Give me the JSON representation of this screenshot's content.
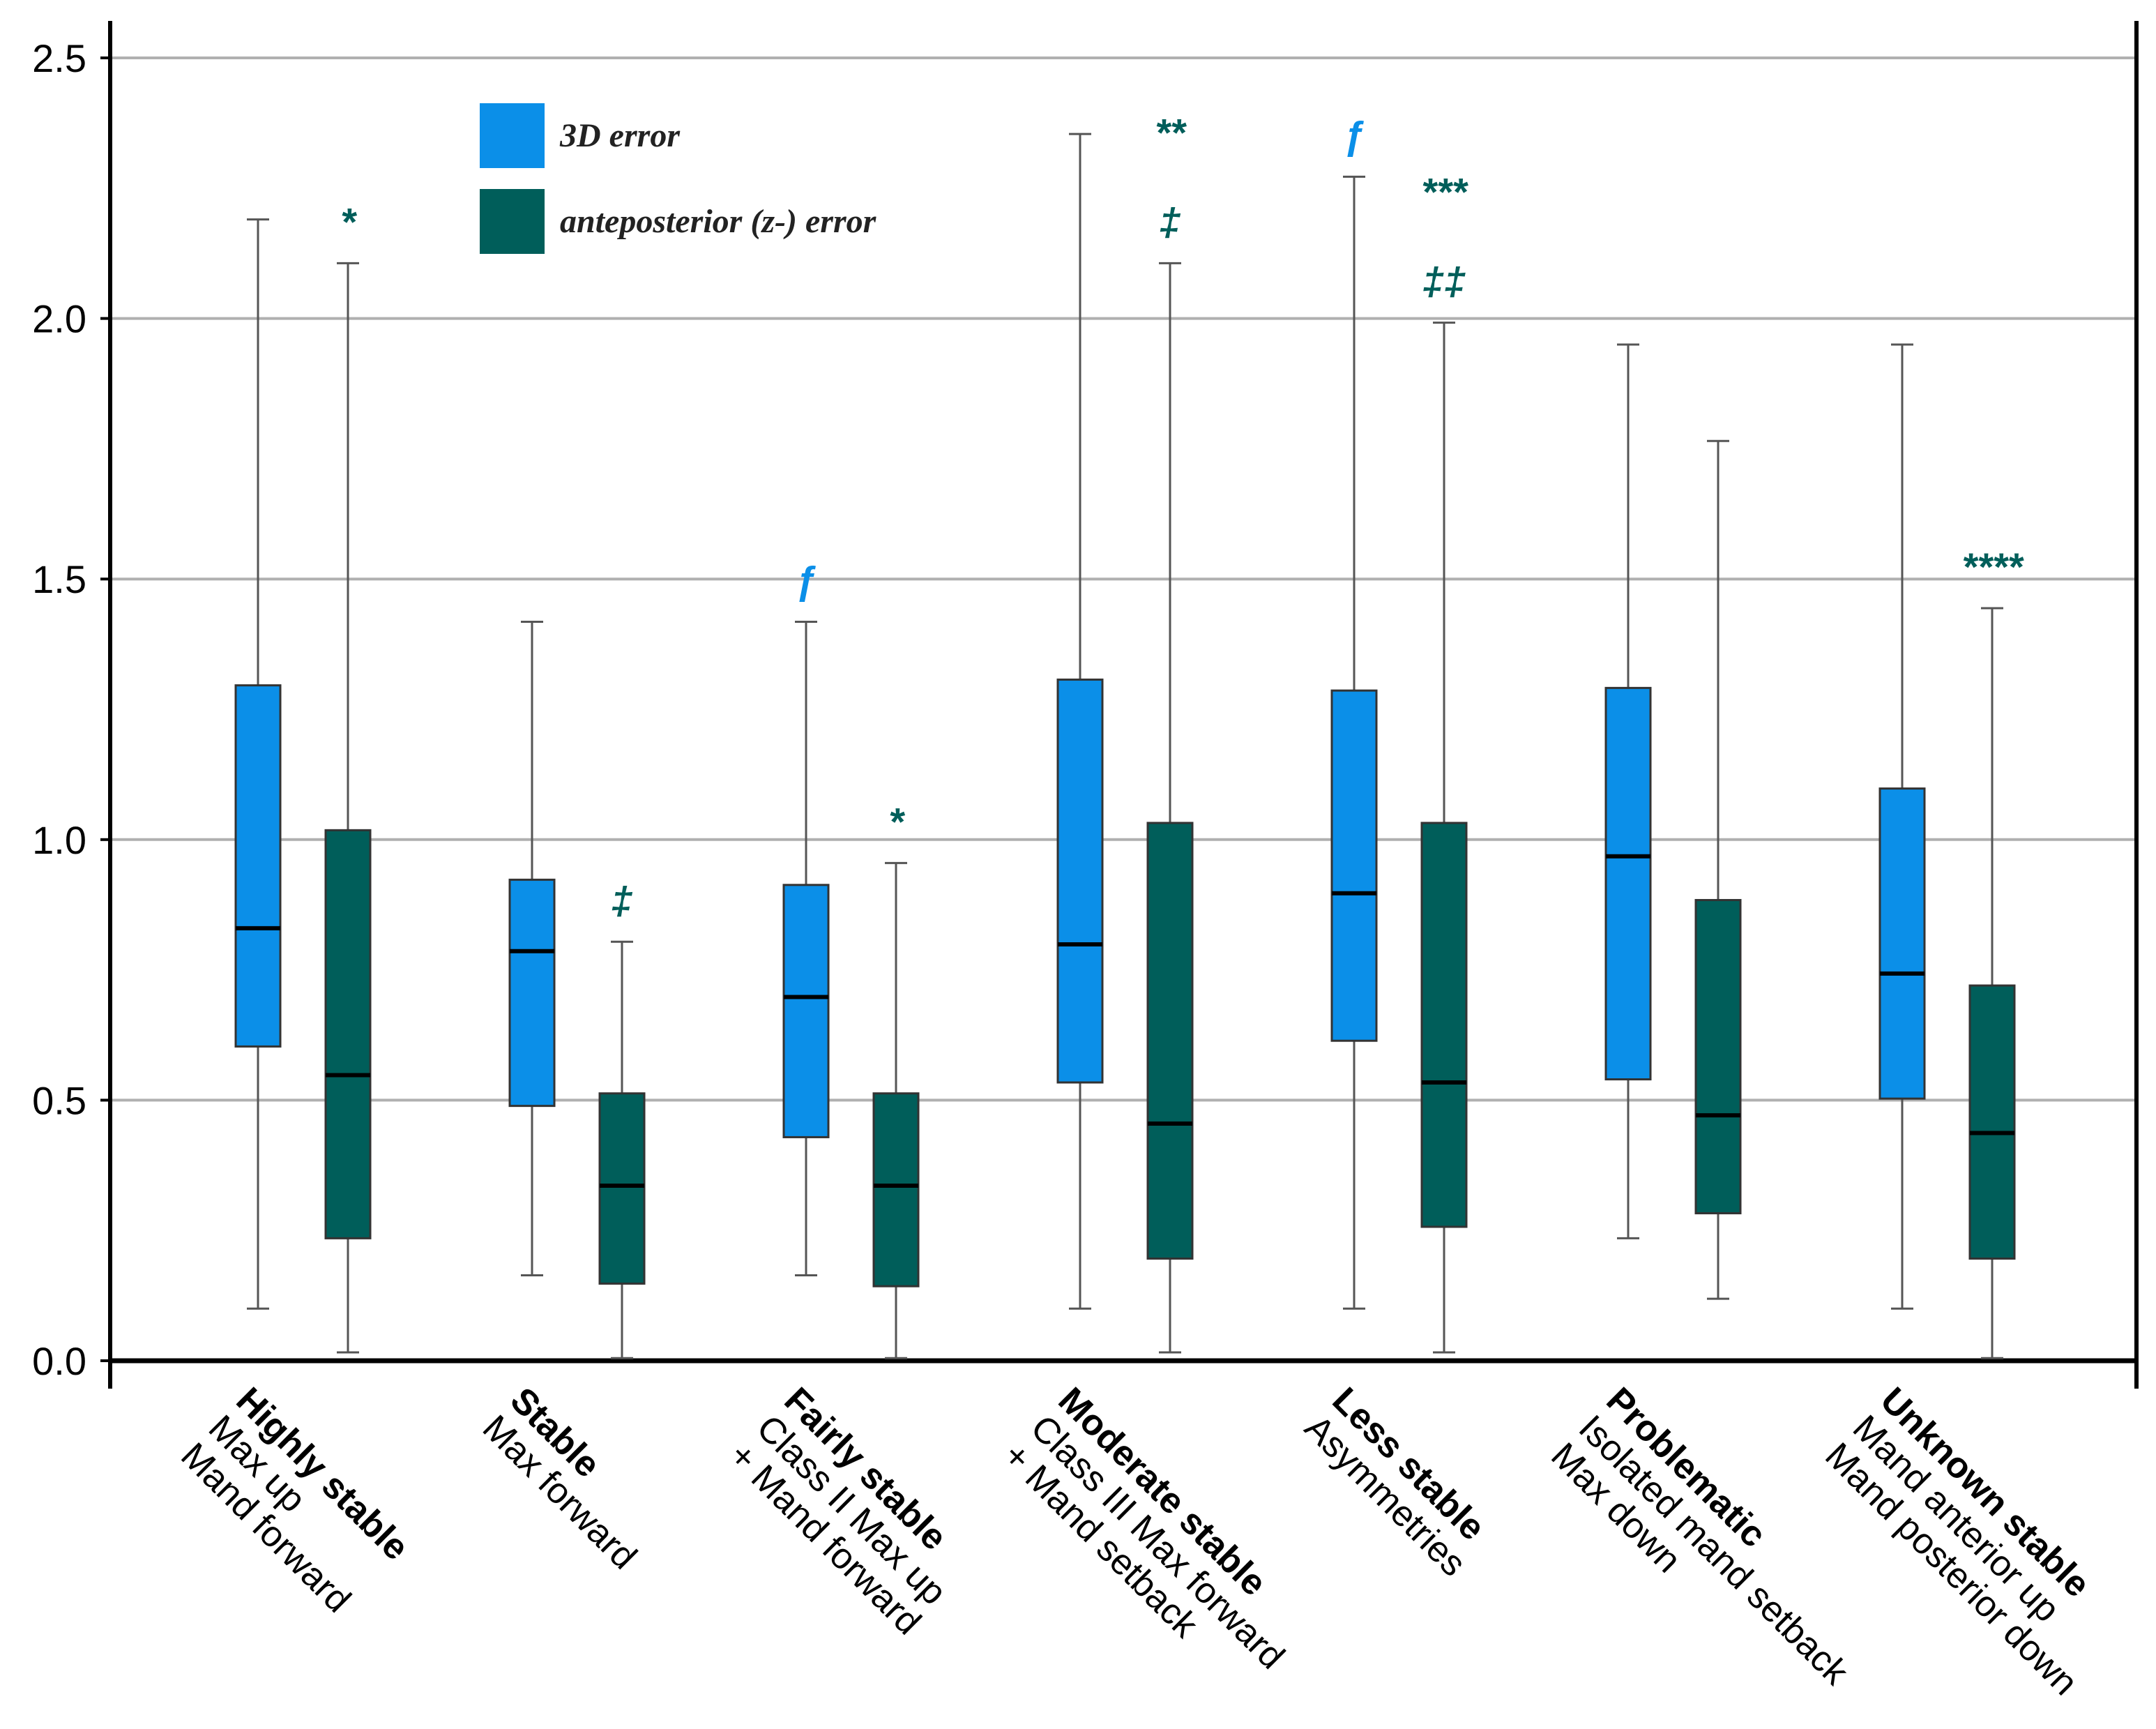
{
  "chart_data": {
    "type": "box",
    "categories": [
      [
        "Highly stable",
        "Max up",
        "Mand forward"
      ],
      [
        "Stable",
        "Max forward"
      ],
      [
        "Fairly stable",
        "Class II Max up",
        "+ Mand forward"
      ],
      [
        "Moderate stable",
        "Class III Max forward",
        "+ Mand setback"
      ],
      [
        "Less stable",
        "Asymmetries"
      ],
      [
        "Problematic",
        "Isolated mand setback",
        "Max down"
      ],
      [
        "Unknown stable",
        "Mand anterior up",
        "Mand posterior down"
      ]
    ],
    "series": [
      {
        "name": "3D error",
        "color": "#0b8fe8",
        "min": [
          0.1,
          0.164,
          0.164,
          0.1,
          0.1,
          0.235,
          0.1
        ],
        "q1": [
          0.603,
          0.489,
          0.429,
          0.534,
          0.614,
          0.54,
          0.503
        ],
        "median": [
          0.83,
          0.786,
          0.698,
          0.799,
          0.897,
          0.968,
          0.743
        ],
        "q3": [
          1.296,
          0.923,
          0.913,
          1.307,
          1.286,
          1.291,
          1.098
        ],
        "max": [
          2.19,
          1.418,
          1.418,
          2.354,
          2.272,
          1.95,
          1.95
        ],
        "annotations": [
          [],
          [],
          [
            "ƒ"
          ],
          [],
          [
            "ƒ"
          ],
          [],
          []
        ]
      },
      {
        "name": "anteposterior (z-) error",
        "color": "#005e5a",
        "min": [
          0.016,
          0.005,
          0.005,
          0.016,
          0.016,
          0.119,
          0.005
        ],
        "q1": [
          0.235,
          0.148,
          0.143,
          0.196,
          0.257,
          0.283,
          0.196
        ],
        "median": [
          0.548,
          0.336,
          0.336,
          0.455,
          0.534,
          0.471,
          0.437
        ],
        "q3": [
          1.018,
          0.513,
          0.513,
          1.032,
          1.032,
          0.884,
          0.72
        ],
        "max": [
          2.106,
          0.804,
          0.955,
          2.106,
          1.992,
          1.765,
          1.444
        ],
        "annotations": [
          [
            "*"
          ],
          [
            "‡"
          ],
          [
            "*"
          ],
          [
            "**",
            "‡"
          ],
          [
            "***",
            "‡‡"
          ],
          [],
          [
            "****"
          ]
        ]
      }
    ],
    "ylim": [
      0,
      2.5
    ],
    "yticks": [
      {
        "value": 0,
        "label": "0.0"
      },
      0.5,
      {
        "value": 1,
        "label": "1.0"
      },
      1.5,
      {
        "value": 2,
        "label": "2.0"
      },
      2.5
    ],
    "grid": true
  }
}
